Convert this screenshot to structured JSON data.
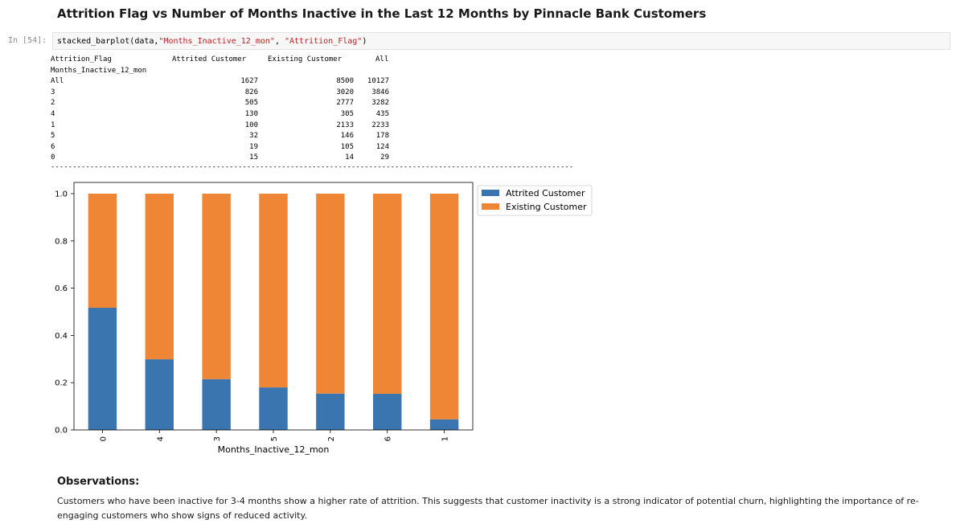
{
  "heading": "Attrition Flag vs Number of Months Inactive in the Last 12 Months by Pinnacle Bank Customers",
  "cell": {
    "prompt": "In [54]:",
    "code_prefix": "stacked_barplot(data,",
    "code_arg1": "\"Months_Inactive_12_mon\"",
    "code_sep": ", ",
    "code_arg2": "\"Attrition_Flag\"",
    "code_suffix": ")"
  },
  "crosstab": {
    "header_label": "Attrition_Flag",
    "columns": [
      "Attrited Customer",
      "Existing Customer",
      "All"
    ],
    "index_label": "Months_Inactive_12_mon",
    "rows": [
      {
        "index": "All",
        "values": [
          "1627",
          "8500",
          "10127"
        ]
      },
      {
        "index": "3",
        "values": [
          "826",
          "3020",
          "3846"
        ]
      },
      {
        "index": "2",
        "values": [
          "505",
          "2777",
          "3282"
        ]
      },
      {
        "index": "4",
        "values": [
          "130",
          "305",
          "435"
        ]
      },
      {
        "index": "1",
        "values": [
          "100",
          "2133",
          "2233"
        ]
      },
      {
        "index": "5",
        "values": [
          "32",
          "146",
          "178"
        ]
      },
      {
        "index": "6",
        "values": [
          "19",
          "105",
          "124"
        ]
      },
      {
        "index": "0",
        "values": [
          "15",
          "14",
          "29"
        ]
      }
    ],
    "separator": "------------------------------------------------------------------------------------------------------------------------"
  },
  "chart_data": {
    "type": "bar",
    "stacked": true,
    "categories": [
      "0",
      "4",
      "3",
      "5",
      "2",
      "6",
      "1"
    ],
    "series": [
      {
        "name": "Attrited Customer",
        "color": "#3b75af",
        "values": [
          0.517,
          0.299,
          0.215,
          0.18,
          0.154,
          0.153,
          0.045
        ]
      },
      {
        "name": "Existing Customer",
        "color": "#ef8636",
        "values": [
          0.483,
          0.701,
          0.785,
          0.82,
          0.846,
          0.847,
          0.955
        ]
      }
    ],
    "yticks": [
      "0.0",
      "0.2",
      "0.4",
      "0.6",
      "0.8",
      "1.0"
    ],
    "ylim": [
      0,
      1.0
    ],
    "xlabel": "Months_Inactive_12_mon",
    "ylabel": "",
    "legend": "outside-top-right"
  },
  "observations": {
    "title": "Observations:",
    "text": "Customers who have been inactive for 3-4 months show a higher rate of attrition. This suggests that customer inactivity is a strong indicator of potential churn, highlighting the importance of re-engaging customers who show signs of reduced activity."
  }
}
